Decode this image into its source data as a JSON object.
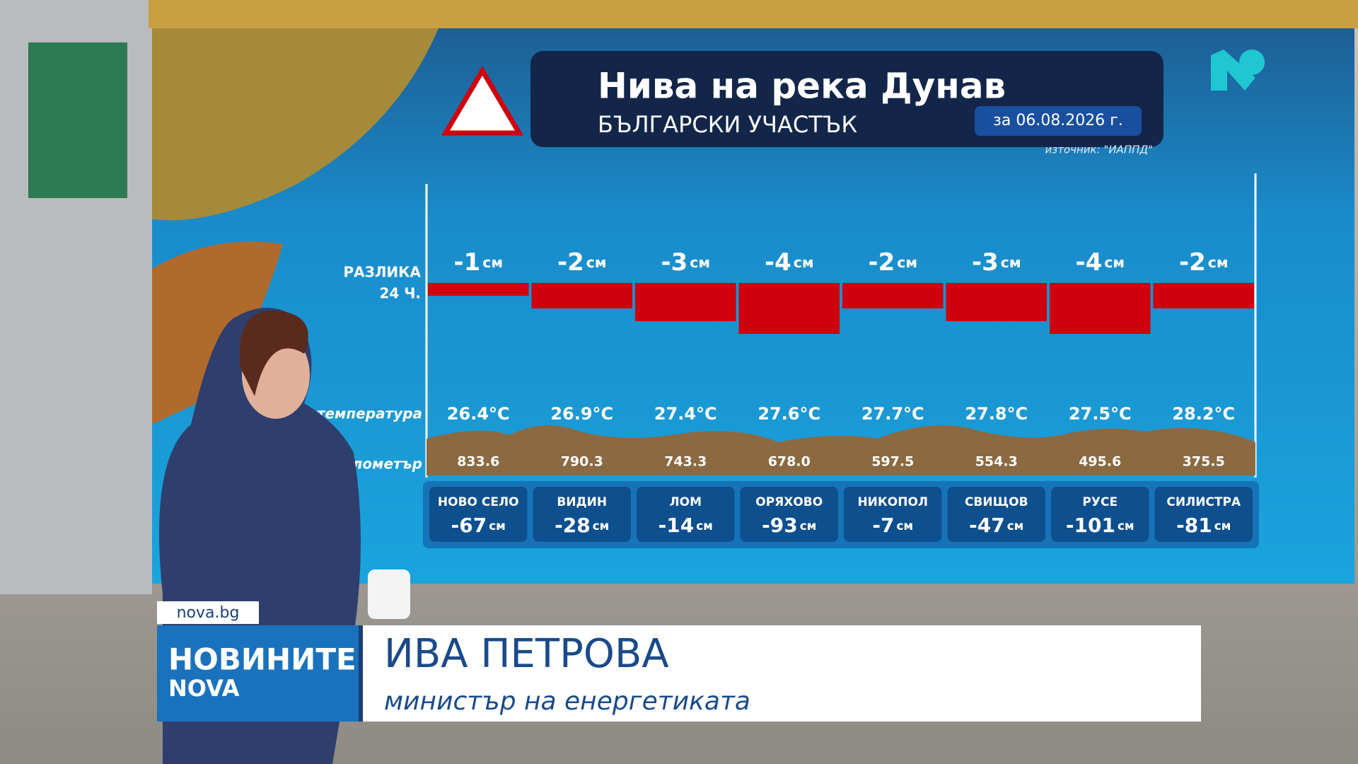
{
  "chart_data": {
    "type": "bar",
    "title": "Нива на река Дунав",
    "subtitle": "БЪЛГАРСКИ УЧАСТЪК",
    "date": "за 06.08.2026 г.",
    "source": "източник: \"ИАППД\"",
    "row_labels": [
      "РАЗЛИКА",
      "24 Ч."
    ],
    "unit": "см",
    "categories": [
      "НОВО СЕЛО",
      "ВИДИН",
      "ЛОМ",
      "ОРЯХОВО",
      "НИКОПОЛ",
      "СВИЩОВ",
      "РУСЕ",
      "СИЛИСТРА"
    ],
    "values": [
      -1,
      -2,
      -3,
      -4,
      -2,
      -3,
      -4,
      -2
    ],
    "color": "#d0000c",
    "ylim": [
      -4,
      0
    ],
    "temperature": {
      "label": "температура",
      "values": [
        26.4,
        26.9,
        27.4,
        27.6,
        27.7,
        27.8,
        27.5,
        28.2
      ],
      "value_labels": [
        "26.4°C",
        "26.9°C",
        "27.4°C",
        "27.6°C",
        "27.7°C",
        "27.8°C",
        "27.5°C",
        "28.2°C"
      ]
    },
    "kilometer": {
      "label": "километър",
      "values": [
        833.6,
        790.3,
        743.3,
        678.0,
        597.5,
        554.3,
        495.6,
        375.5
      ],
      "value_labels": [
        "833.6",
        "790.3",
        "743.3",
        "678.0",
        "597.5",
        "554.3",
        "495.6",
        "375.5"
      ]
    },
    "level": {
      "values": [
        -67,
        -28,
        -14,
        -93,
        -7,
        -47,
        -101,
        -81
      ]
    }
  },
  "lower_third": {
    "site": "nova.bg",
    "brand_1": "НОВИНИТЕ",
    "brand_2": "NOVA",
    "name": "ИВА ПЕТРОВА",
    "role": "министър на енергетиката"
  }
}
